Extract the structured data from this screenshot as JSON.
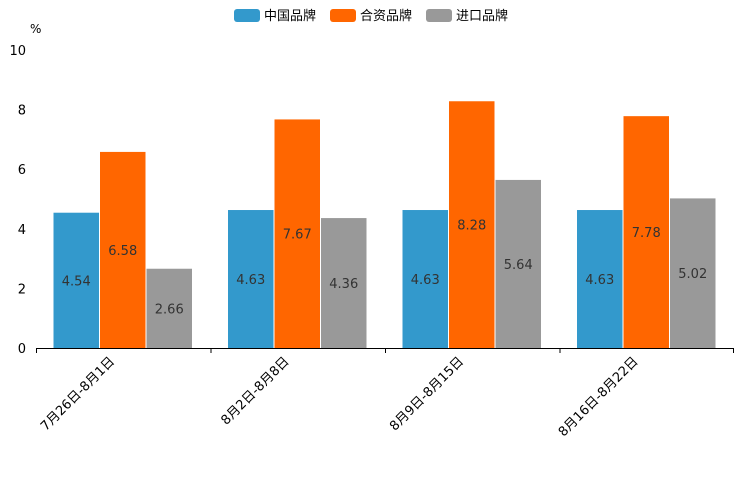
{
  "chart_data": {
    "type": "bar",
    "title": "",
    "ylabel": "%",
    "xlabel": "",
    "ylim": [
      0,
      10
    ],
    "yticks": [
      "0",
      "2",
      "4",
      "6",
      "8",
      "10"
    ],
    "legend_position": "top-center",
    "grid": false,
    "categories": [
      "7月26日-8月1日",
      "8月2日-8月8日",
      "8月9日-8月15日",
      "8月16日-8月22日"
    ],
    "series": [
      {
        "name": "中国品牌",
        "color": "#3399CC",
        "values": [
          4.54,
          4.63,
          4.63,
          4.63
        ],
        "labels": [
          "4.54",
          "4.63",
          "4.63",
          "4.63"
        ]
      },
      {
        "name": "合资品牌",
        "color": "#FF6600",
        "values": [
          6.58,
          7.67,
          8.28,
          7.78
        ],
        "labels": [
          "6.58",
          "7.67",
          "8.28",
          "7.78"
        ]
      },
      {
        "name": "进口品牌",
        "color": "#999999",
        "values": [
          2.66,
          4.36,
          5.64,
          5.02
        ],
        "labels": [
          "2.66",
          "4.36",
          "5.64",
          "5.02"
        ]
      }
    ]
  }
}
